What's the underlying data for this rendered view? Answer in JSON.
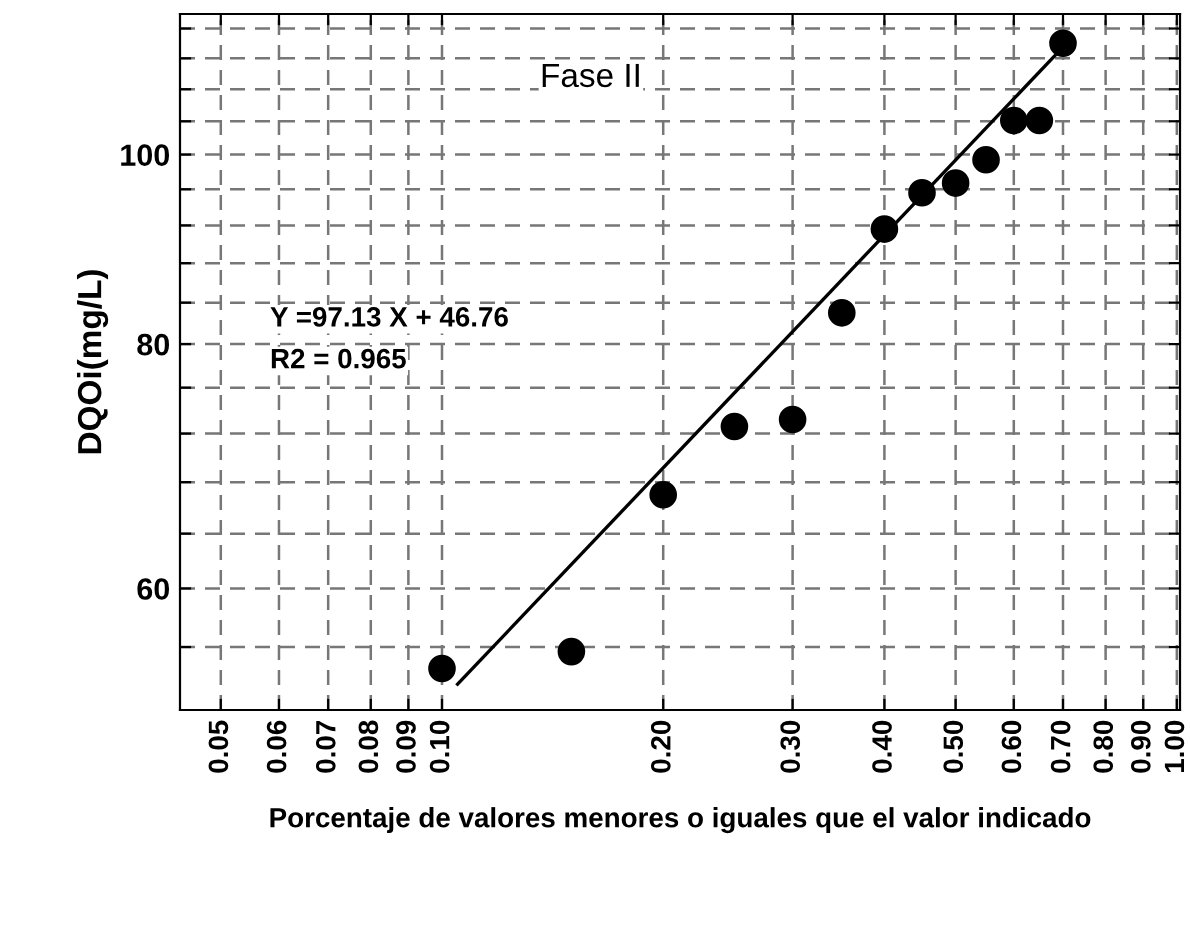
{
  "chart_data": {
    "type": "scatter",
    "xlabel": "Porcentaje de valores menores o iguales que el valor indicado",
    "ylabel": "DQOi(mg/L)",
    "annotations": [
      "Fase II",
      "Y =97.13 X + 46.76",
      "R2 = 0.965"
    ],
    "log": "xy",
    "series": [
      {
        "type": "scatter",
        "color": "#000000",
        "marker": "circle",
        "x": [
          0.1,
          0.15,
          0.2,
          0.25,
          0.3,
          0.35,
          0.4,
          0.45,
          0.5,
          0.55,
          0.6,
          0.65,
          0.7
        ],
        "values": [
          54.6,
          55.7,
          67.0,
          72.6,
          73.2,
          83.0,
          91.6,
          95.6,
          96.7,
          99.4,
          104.1,
          104.1,
          114
        ]
      },
      {
        "type": "line",
        "color": "#000000",
        "line_style": "solid",
        "marker": "none",
        "x": [
          0.105,
          0.7
        ],
        "values": [
          53.6,
          113.5
        ]
      }
    ],
    "xlim": [
      0.044,
      1.01
    ],
    "ylim": [
      52,
      118
    ],
    "xticks": [
      {
        "value": 0.05,
        "label": "0.05"
      },
      {
        "value": 0.06,
        "label": "0.06"
      },
      {
        "value": 0.07,
        "label": "0.07"
      },
      {
        "value": 0.08,
        "label": "0.08"
      },
      {
        "value": 0.09,
        "label": "0.09"
      },
      {
        "value": 0.1,
        "label": "0.10"
      },
      {
        "value": 0.2,
        "label": "0.20"
      },
      {
        "value": 0.3,
        "label": "0.30"
      },
      {
        "value": 0.4,
        "label": "0.40"
      },
      {
        "value": 0.5,
        "label": "0.50"
      },
      {
        "value": 0.6,
        "label": "0.60"
      },
      {
        "value": 0.7,
        "label": "0.70"
      },
      {
        "value": 0.8,
        "label": "0.80"
      },
      {
        "value": 0.9,
        "label": "0.90"
      },
      {
        "value": 1.0,
        "label": "1.00"
      }
    ],
    "yticks": [
      {
        "value": 56,
        "label": null
      },
      60,
      {
        "value": 64,
        "label": null
      },
      {
        "value": 68,
        "label": null
      },
      {
        "value": 72,
        "label": null
      },
      {
        "value": 76,
        "label": null
      },
      80,
      {
        "value": 84,
        "label": null
      },
      {
        "value": 88,
        "label": null
      },
      {
        "value": 92,
        "label": null
      },
      {
        "value": 96,
        "label": null
      },
      100,
      {
        "value": 104,
        "label": null
      },
      {
        "value": 108,
        "label": null
      },
      {
        "value": 112,
        "label": null
      },
      {
        "value": 116,
        "label": null
      }
    ],
    "grid": true,
    "legend": false
  }
}
